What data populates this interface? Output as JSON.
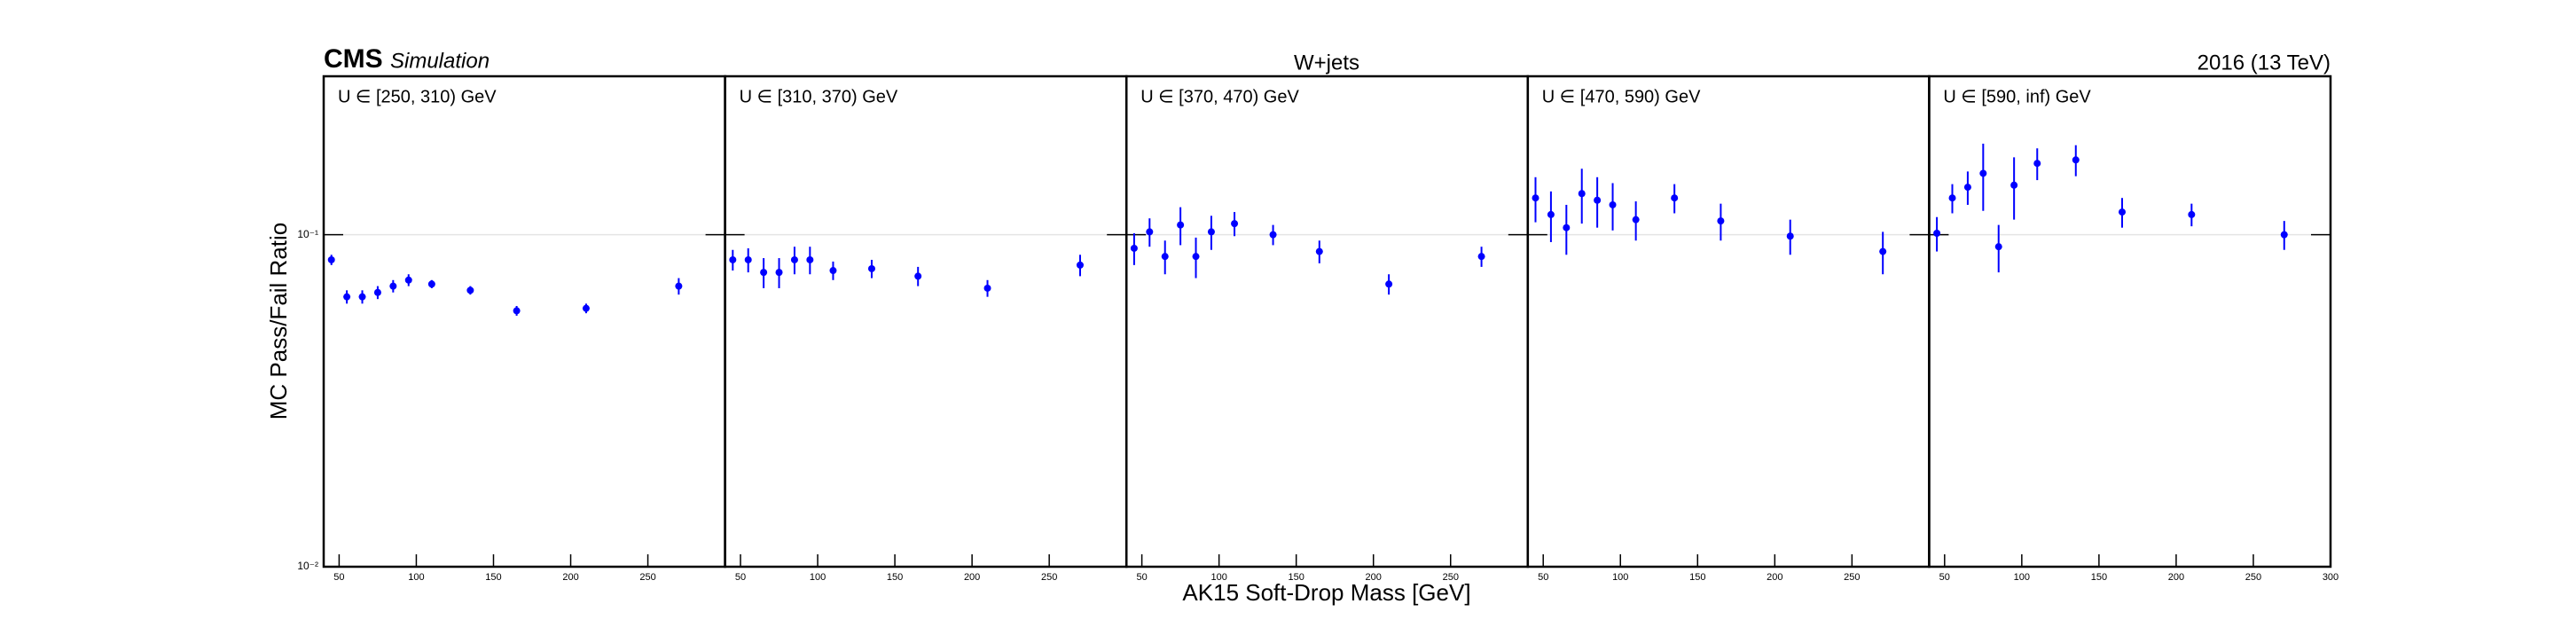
{
  "chart_data": {
    "type": "errorbar",
    "experiment": "CMS",
    "status": "Simulation",
    "title": "W+jets",
    "lumi": "2016 (13 TeV)",
    "ylabel": "MC Pass/Fail Ratio",
    "xlabel": "AK15 Soft-Drop Mass [GeV]",
    "log_y": true,
    "grid": true,
    "color": "#0000ff",
    "ylim": [
      0.01,
      0.3
    ],
    "yticks": [
      {
        "value": 0.01,
        "label": "10⁻²"
      },
      {
        "value": 0.1,
        "label": "10⁻¹"
      }
    ],
    "xlim": [
      40,
      300
    ],
    "panels": [
      {
        "label": "U ∈ [250, 310) GeV",
        "xticks": [
          50,
          100,
          150,
          200,
          250
        ],
        "x": [
          45,
          55,
          65,
          75,
          85,
          95,
          110,
          135,
          165,
          210,
          270
        ],
        "values": [
          0.084,
          0.065,
          0.065,
          0.067,
          0.07,
          0.073,
          0.071,
          0.068,
          0.059,
          0.06,
          0.07
        ],
        "errors": [
          0.003,
          0.003,
          0.003,
          0.003,
          0.003,
          0.003,
          0.002,
          0.002,
          0.002,
          0.002,
          0.004
        ]
      },
      {
        "label": "U ∈ [310, 370) GeV",
        "xticks": [
          50,
          100,
          150,
          200,
          250
        ],
        "x": [
          45,
          55,
          65,
          75,
          85,
          95,
          110,
          135,
          165,
          210,
          270
        ],
        "values": [
          0.084,
          0.084,
          0.077,
          0.077,
          0.084,
          0.084,
          0.078,
          0.079,
          0.075,
          0.069,
          0.081
        ],
        "errors": [
          0.006,
          0.007,
          0.008,
          0.008,
          0.008,
          0.008,
          0.005,
          0.005,
          0.005,
          0.004,
          0.006
        ]
      },
      {
        "label": "U ∈ [370, 470) GeV",
        "xticks": [
          50,
          100,
          150,
          200,
          250
        ],
        "x": [
          45,
          55,
          65,
          75,
          85,
          95,
          110,
          135,
          165,
          210,
          270
        ],
        "values": [
          0.091,
          0.102,
          0.086,
          0.107,
          0.086,
          0.102,
          0.108,
          0.1,
          0.089,
          0.071,
          0.086
        ],
        "errors": [
          0.01,
          0.01,
          0.01,
          0.014,
          0.012,
          0.012,
          0.009,
          0.007,
          0.007,
          0.005,
          0.006
        ]
      },
      {
        "label": "U ∈ [470, 590) GeV",
        "xticks": [
          50,
          100,
          150,
          200,
          250
        ],
        "x": [
          45,
          55,
          65,
          75,
          85,
          95,
          110,
          135,
          165,
          210,
          270
        ],
        "values": [
          0.129,
          0.115,
          0.105,
          0.133,
          0.127,
          0.123,
          0.111,
          0.129,
          0.11,
          0.099,
          0.089
        ],
        "errors": [
          0.02,
          0.02,
          0.018,
          0.025,
          0.022,
          0.02,
          0.015,
          0.013,
          0.014,
          0.012,
          0.013
        ]
      },
      {
        "label": "U ∈ [590, inf) GeV",
        "xticks": [
          50,
          100,
          150,
          200,
          250,
          300
        ],
        "x": [
          45,
          55,
          65,
          75,
          85,
          95,
          110,
          135,
          165,
          210,
          270
        ],
        "values": [
          0.101,
          0.129,
          0.139,
          0.153,
          0.092,
          0.141,
          0.164,
          0.168,
          0.117,
          0.115,
          0.1
        ],
        "errors": [
          0.012,
          0.013,
          0.016,
          0.035,
          0.015,
          0.03,
          0.018,
          0.018,
          0.012,
          0.009,
          0.01
        ]
      }
    ]
  }
}
